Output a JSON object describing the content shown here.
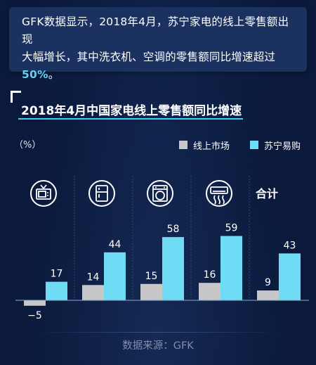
{
  "intro": {
    "line1": "GFK数据显示，2018年4月，苏宁家电的线上零售额出现",
    "line2": "大幅增长，其中洗衣机、空调的零售额同比增速超过",
    "highlight": "50%",
    "end": "。"
  },
  "source": "数据来源：GFK",
  "colors": {
    "online": "#c7c7c9",
    "suning": "#6fdcf5",
    "accent": "#3fd0f0"
  },
  "chart_data": {
    "type": "bar",
    "title": "2018年4月中国家电线上零售额同比增速",
    "unit_label": "（%）",
    "categories": [
      {
        "label": "",
        "icon": "tv-icon"
      },
      {
        "label": "",
        "icon": "refrigerator-icon"
      },
      {
        "label": "",
        "icon": "washing-machine-icon"
      },
      {
        "label": "",
        "icon": "air-conditioner-icon"
      },
      {
        "label": "合计",
        "icon": ""
      }
    ],
    "series": [
      {
        "name": "线上市场",
        "color": "#c7c7c9",
        "values": [
          -5,
          14,
          15,
          16,
          9
        ]
      },
      {
        "name": "苏宁易购",
        "color": "#6fdcf5",
        "values": [
          17,
          44,
          58,
          59,
          43
        ]
      }
    ],
    "value_labels": [
      [
        "−5",
        "14",
        "15",
        "16",
        "9"
      ],
      [
        "17",
        "44",
        "58",
        "59",
        "43"
      ]
    ],
    "ylim": [
      -8,
      75
    ],
    "grid": false,
    "legend_position": "top-right"
  }
}
